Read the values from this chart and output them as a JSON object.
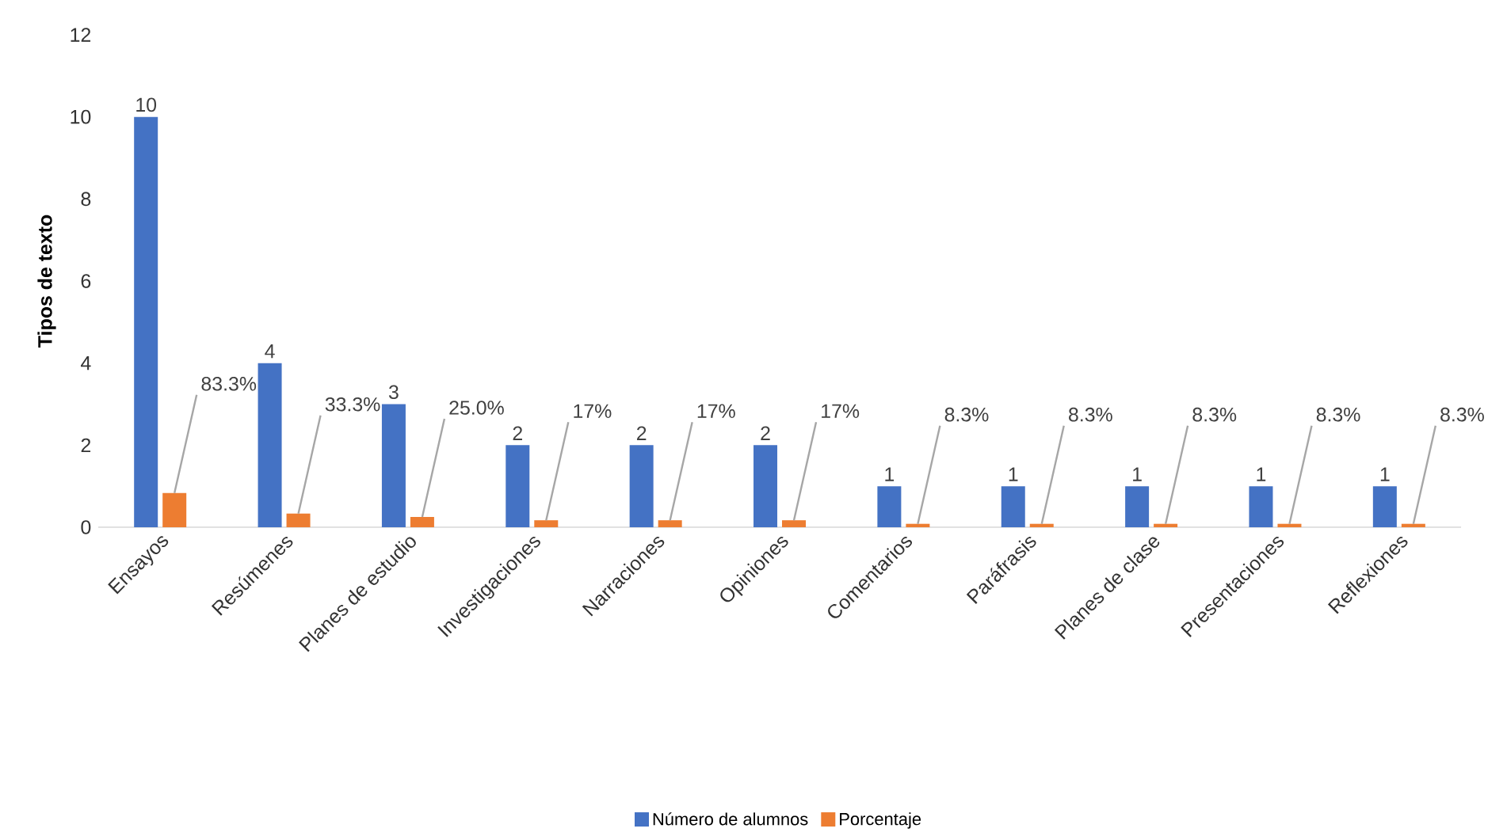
{
  "chart_data": {
    "type": "bar",
    "ylabel": "Tipos de texto",
    "categories": [
      "Ensayos",
      "Resúmenes",
      "Planes de estudio",
      "Investigaciones",
      "Narraciones",
      "Opiniones",
      "Comentarios",
      "Paráfrasis",
      "Planes de clase",
      "Presentaciones",
      "Reflexiones"
    ],
    "series": [
      {
        "name": "Número de alumnos",
        "color": "#4472c4",
        "values": [
          10,
          4,
          3,
          2,
          2,
          2,
          1,
          1,
          1,
          1,
          1
        ],
        "value_labels": [
          "10",
          "4",
          "3",
          "2",
          "2",
          "2",
          "1",
          "1",
          "1",
          "1",
          "1"
        ]
      },
      {
        "name": "Porcentaje",
        "color": "#ed7d31",
        "values": [
          0.833,
          0.333,
          0.25,
          0.17,
          0.17,
          0.17,
          0.083,
          0.083,
          0.083,
          0.083,
          0.083
        ],
        "value_labels": [
          "83.3%",
          "33.3%",
          "25.0%",
          "17%",
          "17%",
          "17%",
          "8.3%",
          "8.3%",
          "8.3%",
          "8.3%",
          "8.3%"
        ]
      }
    ],
    "ylim": [
      0,
      12
    ],
    "yticks": [
      0,
      2,
      4,
      6,
      8,
      10,
      12
    ],
    "grid": false,
    "legend": "bottom"
  }
}
